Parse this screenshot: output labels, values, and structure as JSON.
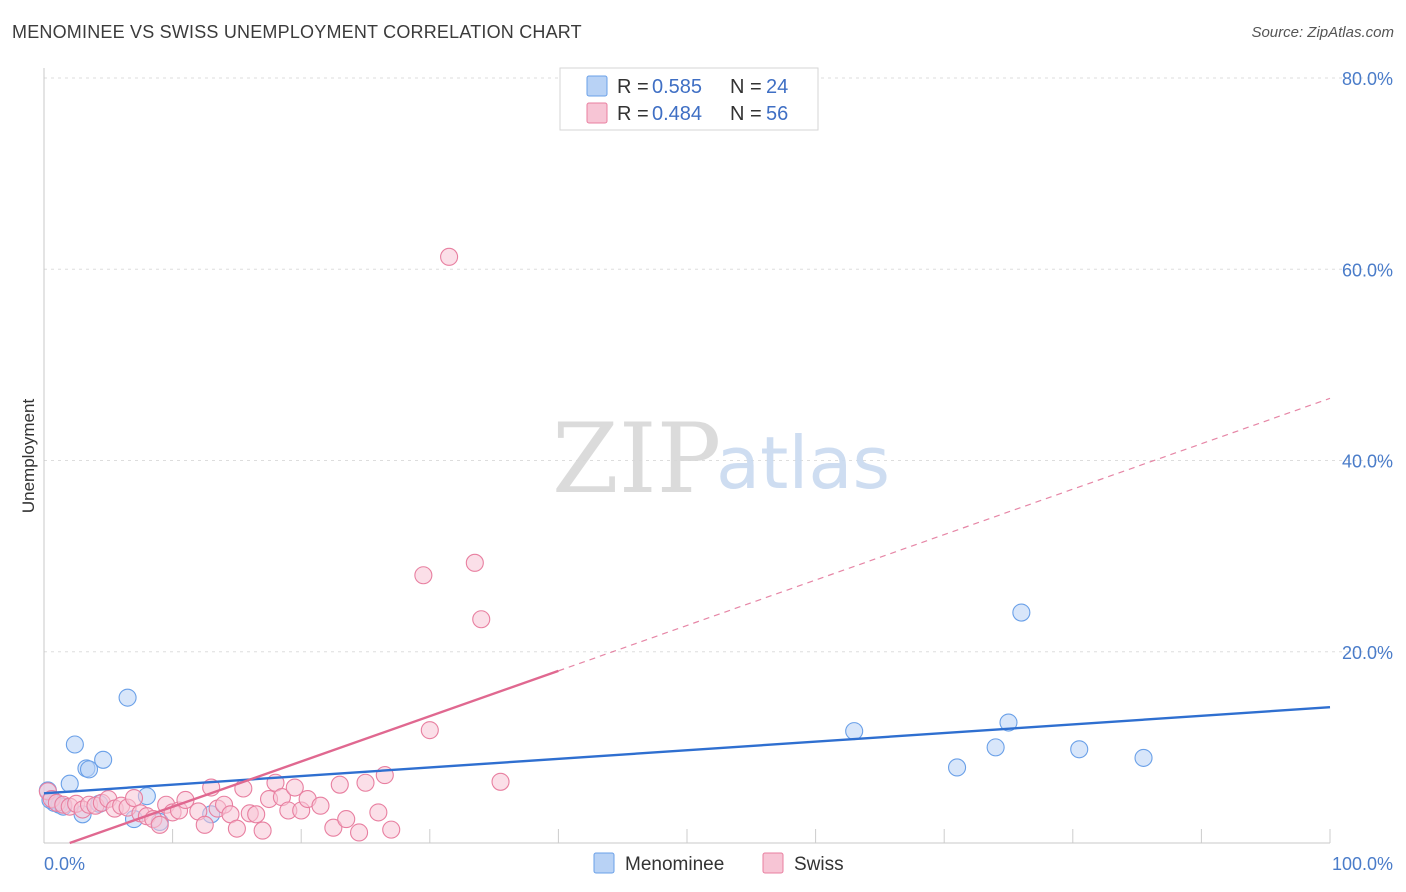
{
  "title": "MENOMINEE VS SWISS UNEMPLOYMENT CORRELATION CHART",
  "source": "Source: ZipAtlas.com",
  "watermark": {
    "zip": "ZIP",
    "atlas": "atlas"
  },
  "chart_data": {
    "type": "scatter",
    "xlabel": "",
    "ylabel": "Unemployment",
    "xlim": [
      0,
      100
    ],
    "ylim": [
      0,
      80
    ],
    "x_tick_labels": [
      "0.0%",
      "100.0%"
    ],
    "y_ticks": [
      20,
      40,
      60,
      80
    ],
    "y_tick_labels": [
      "20.0%",
      "40.0%",
      "60.0%",
      "80.0%"
    ],
    "grid": true,
    "legend": [
      {
        "name": "Menominee",
        "r_label": "R = ",
        "r": "0.585",
        "n_label": "N = ",
        "n": "24",
        "color": "#6aa0e8",
        "fill": "#b8d2f5"
      },
      {
        "name": "Swiss",
        "r_label": "R = ",
        "r": "0.484",
        "n_label": "N = ",
        "n": "56",
        "color": "#e87fa0",
        "fill": "#f7c5d5"
      }
    ],
    "series": [
      {
        "name": "Menominee",
        "color": "#6aa0e8",
        "points": [
          [
            0.3,
            5.5
          ],
          [
            0.8,
            4.2
          ],
          [
            1.2,
            4.0
          ],
          [
            2.0,
            6.2
          ],
          [
            2.4,
            10.3
          ],
          [
            3.0,
            3.0
          ],
          [
            3.3,
            7.8
          ],
          [
            3.5,
            7.7
          ],
          [
            4.3,
            4.1
          ],
          [
            4.6,
            8.7
          ],
          [
            6.5,
            15.2
          ],
          [
            7.0,
            2.5
          ],
          [
            8.0,
            4.9
          ],
          [
            9.0,
            2.2
          ],
          [
            13.0,
            3.0
          ],
          [
            63.0,
            11.7
          ],
          [
            71.0,
            7.9
          ],
          [
            74.0,
            10.0
          ],
          [
            75.0,
            12.6
          ],
          [
            76.0,
            24.1
          ],
          [
            80.5,
            9.8
          ],
          [
            85.5,
            8.9
          ],
          [
            0.5,
            4.5
          ],
          [
            1.5,
            3.8
          ]
        ],
        "trend": {
          "x1": 0,
          "y1": 5.2,
          "x2": 100,
          "y2": 14.2,
          "dashed_to": null
        }
      },
      {
        "name": "Swiss",
        "color": "#e87fa0",
        "points": [
          [
            0.3,
            5.4
          ],
          [
            0.6,
            4.6
          ],
          [
            1.0,
            4.2
          ],
          [
            1.5,
            4.0
          ],
          [
            2.0,
            3.8
          ],
          [
            2.5,
            4.1
          ],
          [
            3.0,
            3.5
          ],
          [
            3.5,
            4.0
          ],
          [
            4.0,
            3.9
          ],
          [
            4.5,
            4.2
          ],
          [
            5.0,
            4.6
          ],
          [
            5.5,
            3.6
          ],
          [
            6.0,
            3.9
          ],
          [
            6.5,
            3.7
          ],
          [
            7.0,
            4.7
          ],
          [
            7.5,
            3.1
          ],
          [
            8.0,
            2.8
          ],
          [
            8.5,
            2.5
          ],
          [
            9.0,
            1.9
          ],
          [
            9.5,
            4.0
          ],
          [
            10.0,
            3.2
          ],
          [
            10.5,
            3.4
          ],
          [
            11.0,
            4.5
          ],
          [
            12.0,
            3.3
          ],
          [
            12.5,
            1.9
          ],
          [
            13.0,
            5.8
          ],
          [
            13.5,
            3.6
          ],
          [
            14.0,
            4.0
          ],
          [
            14.5,
            3.0
          ],
          [
            15.0,
            1.5
          ],
          [
            15.5,
            5.7
          ],
          [
            16.0,
            3.1
          ],
          [
            16.5,
            3.0
          ],
          [
            17.0,
            1.3
          ],
          [
            17.5,
            4.6
          ],
          [
            18.0,
            6.3
          ],
          [
            18.5,
            4.8
          ],
          [
            19.0,
            3.4
          ],
          [
            19.5,
            5.8
          ],
          [
            20.0,
            3.4
          ],
          [
            20.5,
            4.6
          ],
          [
            21.5,
            3.9
          ],
          [
            22.5,
            1.6
          ],
          [
            23.0,
            6.1
          ],
          [
            23.5,
            2.5
          ],
          [
            24.5,
            1.1
          ],
          [
            25.0,
            6.3
          ],
          [
            26.0,
            3.2
          ],
          [
            26.5,
            7.1
          ],
          [
            27.0,
            1.4
          ],
          [
            29.5,
            28.0
          ],
          [
            31.5,
            61.3
          ],
          [
            33.5,
            29.3
          ],
          [
            34.0,
            23.4
          ],
          [
            30.0,
            11.8
          ],
          [
            35.5,
            6.4
          ]
        ],
        "trend": {
          "x1": 2.0,
          "y1": 0.0,
          "x2": 40.0,
          "y2": 18.0,
          "dashed_to": {
            "x": 100,
            "y": 46.5
          }
        }
      }
    ]
  }
}
